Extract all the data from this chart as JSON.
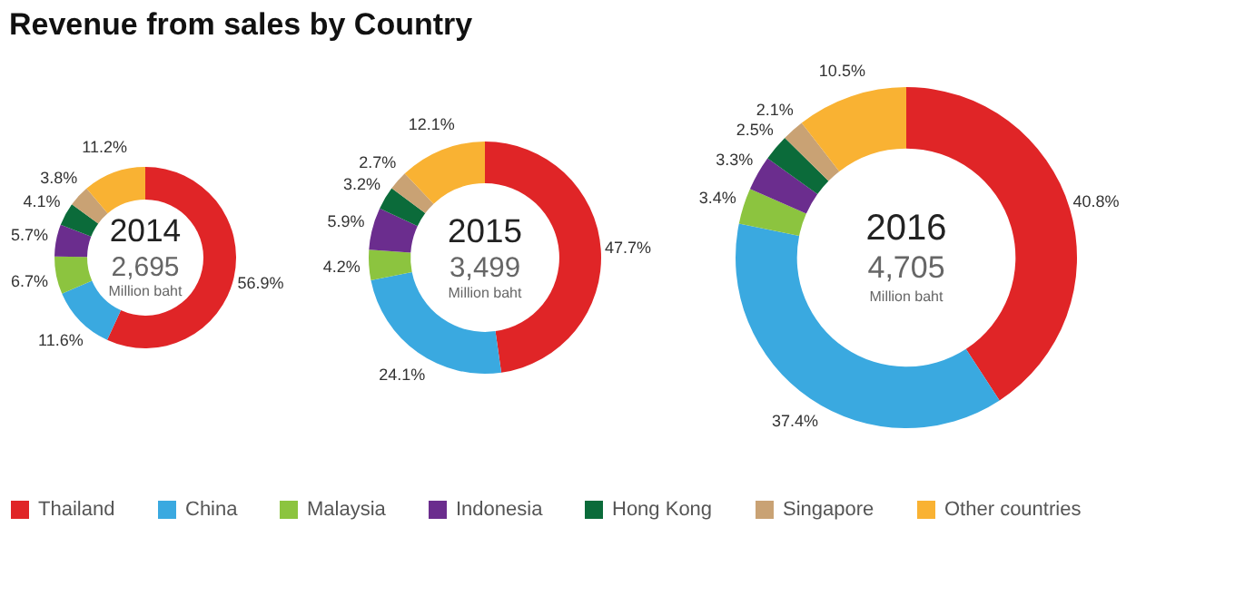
{
  "chart_data": {
    "type": "donut",
    "title": "Revenue from sales by Country",
    "categories": [
      "Thailand",
      "China",
      "Malaysia",
      "Indonesia",
      "Hong Kong",
      "Singapore",
      "Other countries"
    ],
    "colors": [
      "#e02527",
      "#3aa9e0",
      "#8cc43f",
      "#6b2d8e",
      "#0b6b3a",
      "#c9a274",
      "#f9b233"
    ],
    "legend": "bottom",
    "series": [
      {
        "name": "2014",
        "values": [
          56.9,
          11.6,
          6.7,
          5.7,
          4.1,
          3.8,
          11.2
        ],
        "value_labels": [
          "56.9%",
          "11.6%",
          "6.7%",
          "5.7%",
          "4.1%",
          "3.8%",
          "11.2%"
        ]
      },
      {
        "name": "2015",
        "values": [
          47.7,
          24.1,
          4.2,
          5.9,
          3.2,
          2.7,
          12.1
        ],
        "value_labels": [
          "47.7%",
          "24.1%",
          "4.2%",
          "5.9%",
          "3.2%",
          "2.7%",
          "12.1%"
        ]
      },
      {
        "name": "2016",
        "values": [
          40.8,
          37.4,
          3.4,
          3.3,
          2.5,
          2.1,
          10.5
        ],
        "value_labels": [
          "40.8%",
          "37.4%",
          "3.4%",
          "3.3%",
          "2.5%",
          "2.1%",
          "10.5%"
        ]
      }
    ],
    "annotations": [
      "2,695",
      "Million baht",
      "3,499",
      "Million baht",
      "4,705",
      "Million baht"
    ]
  }
}
